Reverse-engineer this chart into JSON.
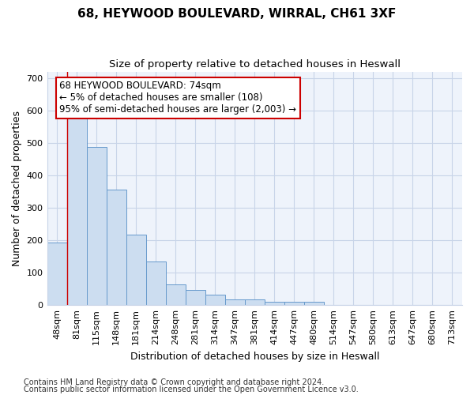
{
  "title": "68, HEYWOOD BOULEVARD, WIRRAL, CH61 3XF",
  "subtitle": "Size of property relative to detached houses in Heswall",
  "xlabel": "Distribution of detached houses by size in Heswall",
  "ylabel": "Number of detached properties",
  "categories": [
    "48sqm",
    "81sqm",
    "115sqm",
    "148sqm",
    "181sqm",
    "214sqm",
    "248sqm",
    "281sqm",
    "314sqm",
    "347sqm",
    "381sqm",
    "414sqm",
    "447sqm",
    "480sqm",
    "514sqm",
    "547sqm",
    "580sqm",
    "613sqm",
    "647sqm",
    "680sqm",
    "713sqm"
  ],
  "values": [
    192,
    580,
    487,
    357,
    217,
    135,
    63,
    46,
    33,
    18,
    17,
    9,
    10,
    9,
    0,
    0,
    0,
    0,
    0,
    0,
    0
  ],
  "bar_color": "#ccddf0",
  "bar_edge_color": "#6699cc",
  "background_color": "#ffffff",
  "plot_bg_color": "#eef3fb",
  "grid_color": "#c8d4e8",
  "annotation_text": "68 HEYWOOD BOULEVARD: 74sqm\n← 5% of detached houses are smaller (108)\n95% of semi-detached houses are larger (2,003) →",
  "annotation_box_color": "#ffffff",
  "annotation_box_edge": "#cc0000",
  "red_line_x": 0.5,
  "footnote1": "Contains HM Land Registry data © Crown copyright and database right 2024.",
  "footnote2": "Contains public sector information licensed under the Open Government Licence v3.0.",
  "ylim": [
    0,
    720
  ],
  "yticks": [
    0,
    100,
    200,
    300,
    400,
    500,
    600,
    700
  ],
  "title_fontsize": 11,
  "subtitle_fontsize": 9.5,
  "axis_label_fontsize": 9,
  "tick_fontsize": 8,
  "annotation_fontsize": 8.5,
  "footnote_fontsize": 7
}
